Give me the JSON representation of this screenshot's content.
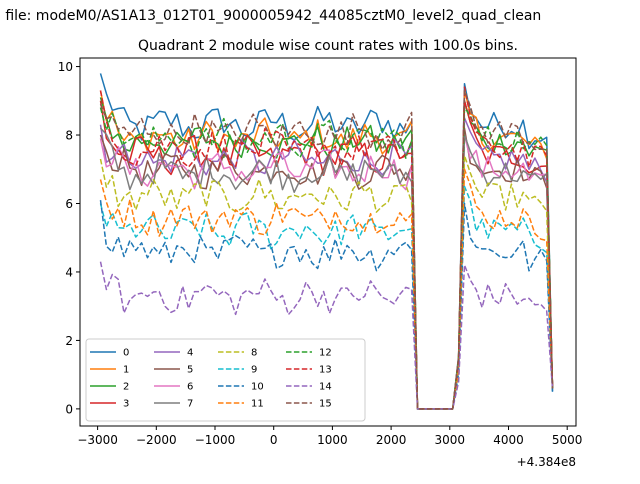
{
  "chart_data": {
    "type": "line",
    "suptitle": "n file: modeM0/AS1A13_012T01_9000005942_44085cztM0_level2_quad_clean",
    "title": "Quadrant 2 module wise count rates with 100.0s bins.",
    "xlabel": "",
    "ylabel": "",
    "x_offset_label": "+4.384e8",
    "xlim": [
      -3300,
      5150
    ],
    "ylim": [
      -0.5,
      10.25
    ],
    "xticks": [
      -3000,
      -2000,
      -1000,
      0,
      1000,
      2000,
      3000,
      4000,
      5000
    ],
    "xtick_labels": [
      "−3000",
      "−2000",
      "−1000",
      "0",
      "1000",
      "2000",
      "3000",
      "4000",
      "5000"
    ],
    "yticks": [
      0,
      2,
      4,
      6,
      8,
      10
    ],
    "ytick_labels": [
      "0",
      "2",
      "4",
      "6",
      "8",
      "10"
    ],
    "grid": false,
    "legend_position": "lower-left",
    "legend_columns": 4,
    "x_start": -2950,
    "x_step": 100,
    "gap_start": 2450,
    "gap_end": 3050,
    "end_x": 4750,
    "series": [
      {
        "name": "0",
        "color": "#1f77b4",
        "dash": "solid",
        "level": 8.3,
        "seg1_first": 9.8,
        "seg2_first": 9.5,
        "gap_low": 0.0,
        "end_val": 0.5
      },
      {
        "name": "1",
        "color": "#ff7f0e",
        "dash": "solid",
        "level": 7.9,
        "seg1_first": 9.3,
        "seg2_first": 9.3,
        "gap_low": 0.0,
        "end_val": 0.6
      },
      {
        "name": "2",
        "color": "#2ca02c",
        "dash": "solid",
        "level": 7.8,
        "seg1_first": 9.1,
        "seg2_first": 9.0,
        "gap_low": 0.0,
        "end_val": 0.6
      },
      {
        "name": "3",
        "color": "#d62728",
        "dash": "solid",
        "level": 7.4,
        "seg1_first": 9.0,
        "seg2_first": 9.0,
        "gap_low": 0.0,
        "end_val": 0.6
      },
      {
        "name": "4",
        "color": "#9467bd",
        "dash": "solid",
        "level": 7.3,
        "seg1_first": 8.3,
        "seg2_first": 8.5,
        "gap_low": 0.0,
        "end_val": 0.6
      },
      {
        "name": "5",
        "color": "#8c564b",
        "dash": "solid",
        "level": 7.0,
        "seg1_first": 8.0,
        "seg2_first": 8.2,
        "gap_low": 0.0,
        "end_val": 0.6
      },
      {
        "name": "6",
        "color": "#e377c2",
        "dash": "solid",
        "level": 7.0,
        "seg1_first": 7.9,
        "seg2_first": 8.0,
        "gap_low": 0.0,
        "end_val": 0.6
      },
      {
        "name": "7",
        "color": "#7f7f7f",
        "dash": "solid",
        "level": 6.9,
        "seg1_first": 8.2,
        "seg2_first": 8.0,
        "gap_low": 0.0,
        "end_val": 0.6
      },
      {
        "name": "8",
        "color": "#bcbd22",
        "dash": "dashed",
        "level": 6.2,
        "seg1_first": 7.3,
        "seg2_first": 7.4,
        "gap_low": 0.0,
        "end_val": 0.6
      },
      {
        "name": "9",
        "color": "#17becf",
        "dash": "dashed",
        "level": 5.2,
        "seg1_first": 6.0,
        "seg2_first": 6.5,
        "gap_low": 0.0,
        "end_val": 0.6
      },
      {
        "name": "10",
        "color": "#1f77b4",
        "dash": "dashed",
        "level": 4.6,
        "seg1_first": 6.1,
        "seg2_first": 6.0,
        "gap_low": 0.0,
        "end_val": 0.5
      },
      {
        "name": "11",
        "color": "#ff7f0e",
        "dash": "dashed",
        "level": 5.6,
        "seg1_first": 6.7,
        "seg2_first": 7.0,
        "gap_low": 0.0,
        "end_val": 0.6
      },
      {
        "name": "12",
        "color": "#2ca02c",
        "dash": "dashed",
        "level": 7.9,
        "seg1_first": 8.8,
        "seg2_first": 8.8,
        "gap_low": 0.0,
        "end_val": 0.6
      },
      {
        "name": "13",
        "color": "#d62728",
        "dash": "dashed",
        "level": 7.6,
        "seg1_first": 9.3,
        "seg2_first": 9.4,
        "gap_low": 0.0,
        "end_val": 0.6
      },
      {
        "name": "14",
        "color": "#9467bd",
        "dash": "dashed",
        "level": 3.3,
        "seg1_first": 4.3,
        "seg2_first": 4.2,
        "gap_low": 0.0,
        "end_val": 0.6
      },
      {
        "name": "15",
        "color": "#8c564b",
        "dash": "dashed",
        "level": 8.1,
        "seg1_first": 8.9,
        "seg2_first": 9.3,
        "gap_low": 0.0,
        "end_val": 0.6
      }
    ]
  }
}
